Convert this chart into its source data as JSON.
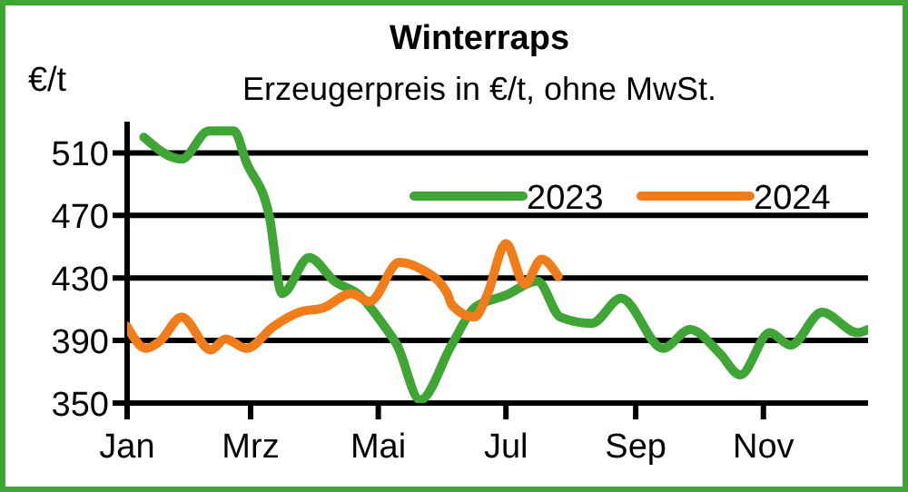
{
  "chart_data": {
    "type": "line",
    "title": "Winterraps",
    "subtitle": "Erzeugerpreis  in  €/t, ohne  MwSt.",
    "ylabel": "€/t",
    "xlim": [
      "--01-01",
      "--12-21"
    ],
    "xticks": [
      {
        "value": "--01-01",
        "label": "Jan"
      },
      {
        "value": "--03-01",
        "label": "Mrz"
      },
      {
        "value": "--05-01",
        "label": "Mai"
      },
      {
        "value": "--07-01",
        "label": "Jul"
      },
      {
        "value": "--09-01",
        "label": "Sep"
      },
      {
        "value": "--11-01",
        "label": "Nov"
      }
    ],
    "ylim": [
      350,
      530
    ],
    "yticks": [
      350,
      390,
      430,
      470,
      510
    ],
    "grid": "y",
    "legend": "top right",
    "line_style": "solid",
    "marker": "none",
    "series": [
      {
        "name": "2023",
        "color": "#3fa535",
        "x": [
          "--01-09",
          "--01-27",
          "--02-09",
          "--02-21",
          "--02-27",
          "--03-10",
          "--03-16",
          "--03-29",
          "--04-10",
          "--04-22",
          "--05-04",
          "--05-10",
          "--05-21",
          "--06-05",
          "--06-16",
          "--07-01",
          "--07-16",
          "--07-27",
          "--08-11",
          "--08-25",
          "--09-14",
          "--09-27",
          "--10-11",
          "--10-21",
          "--11-04",
          "--11-14",
          "--11-29",
          "--12-16",
          "--12-21"
        ],
        "values": [
          520,
          506,
          524,
          524,
          504,
          469,
          420,
          443,
          428,
          419,
          399,
          387,
          352,
          387,
          411,
          419,
          428,
          405,
          401,
          417,
          385,
          397,
          382,
          368,
          395,
          387,
          408,
          395,
          397
        ]
      },
      {
        "name": "2024",
        "color": "#f07d1a",
        "x": [
          "--01-01",
          "--01-10",
          "--01-17",
          "--01-27",
          "--02-10",
          "--02-17",
          "--02-27",
          "--03-12",
          "--03-24",
          "--04-05",
          "--04-18",
          "--04-27",
          "--05-11",
          "--05-21",
          "--06-03",
          "--06-05",
          "--06-16",
          "--06-22",
          "--07-01",
          "--07-10",
          "--07-18",
          "--07-26"
        ],
        "values": [
          399,
          385,
          390,
          405,
          384,
          391,
          385,
          399,
          408,
          411,
          420,
          415,
          440,
          436,
          420,
          413,
          405,
          419,
          452,
          426,
          442,
          431
        ]
      }
    ]
  }
}
